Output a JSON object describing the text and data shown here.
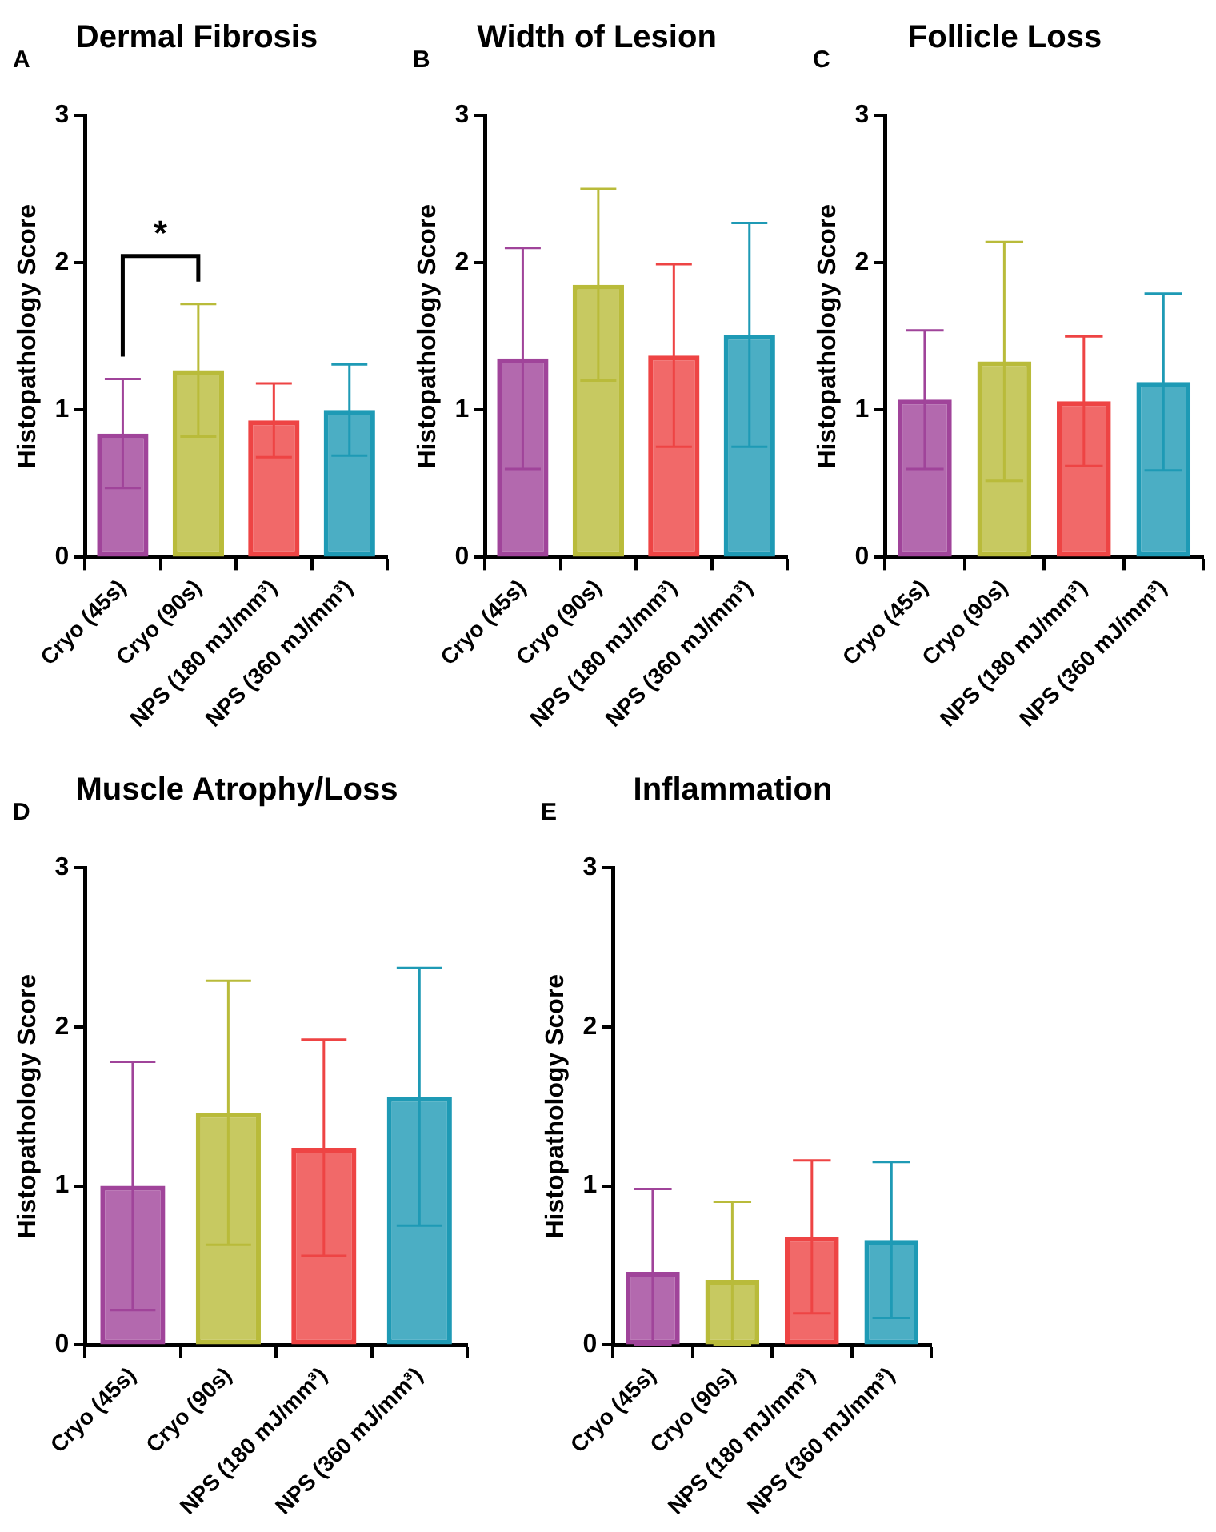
{
  "chart_data": [
    {
      "type": "bar",
      "title": "Dermal Fibrosis",
      "ylabel": "Histopathology Score",
      "categories": [
        "Cryo (45s)",
        "Cryo (90s)",
        "NPS (180 mJ/mm³)",
        "NPS (360 mJ/mm³)"
      ],
      "values": [
        0.84,
        1.27,
        0.93,
        1.0
      ],
      "errors": [
        0.37,
        0.45,
        0.25,
        0.31
      ],
      "colors": [
        "#a0449a",
        "#b9bb3a",
        "#ee4444",
        "#1e9ab5"
      ],
      "ylim": [
        0,
        3
      ],
      "yticks": [
        0,
        1,
        2,
        3
      ],
      "grid": false,
      "legend": false,
      "annotations": [
        "A",
        "*"
      ]
    },
    {
      "type": "bar",
      "title": "Width of Lesion",
      "ylabel": "Histopathology Score",
      "categories": [
        "Cryo (45s)",
        "Cryo (90s)",
        "NPS (180 mJ/mm³)",
        "NPS (360 mJ/mm³)"
      ],
      "values": [
        1.35,
        1.85,
        1.37,
        1.51
      ],
      "errors": [
        0.75,
        0.65,
        0.62,
        0.76
      ],
      "colors": [
        "#a0449a",
        "#b9bb3a",
        "#ee4444",
        "#1e9ab5"
      ],
      "ylim": [
        0,
        3
      ],
      "yticks": [
        0,
        1,
        2,
        3
      ],
      "grid": false,
      "legend": false,
      "annotations": [
        "B"
      ]
    },
    {
      "type": "bar",
      "title": "Follicle Loss",
      "ylabel": "Histopathology Score",
      "categories": [
        "Cryo (45s)",
        "Cryo (90s)",
        "NPS (180 mJ/mm³)",
        "NPS (360 mJ/mm³)"
      ],
      "values": [
        1.07,
        1.33,
        1.06,
        1.19
      ],
      "errors": [
        0.47,
        0.81,
        0.44,
        0.6
      ],
      "colors": [
        "#a0449a",
        "#b9bb3a",
        "#ee4444",
        "#1e9ab5"
      ],
      "ylim": [
        0,
        3
      ],
      "yticks": [
        0,
        1,
        2,
        3
      ],
      "grid": false,
      "legend": false,
      "annotations": [
        "C"
      ]
    },
    {
      "type": "bar",
      "title": "Muscle Atrophy/Loss",
      "ylabel": "Histopathology Score",
      "categories": [
        "Cryo (45s)",
        "Cryo (90s)",
        "NPS (180 mJ/mm³)",
        "NPS (360 mJ/mm³)"
      ],
      "values": [
        1.0,
        1.46,
        1.24,
        1.56
      ],
      "errors": [
        0.78,
        0.83,
        0.68,
        0.81
      ],
      "colors": [
        "#a0449a",
        "#b9bb3a",
        "#ee4444",
        "#1e9ab5"
      ],
      "ylim": [
        0,
        3
      ],
      "yticks": [
        0,
        1,
        2,
        3
      ],
      "grid": false,
      "legend": false,
      "annotations": [
        "D"
      ]
    },
    {
      "type": "bar",
      "title": "Inflammation",
      "ylabel": "Histopathology Score",
      "categories": [
        "Cryo (45s)",
        "Cryo (90s)",
        "NPS (180 mJ/mm³)",
        "NPS (360 mJ/mm³)"
      ],
      "values": [
        0.46,
        0.41,
        0.68,
        0.66
      ],
      "errors": [
        [
          0,
          0.98
        ],
        [
          0,
          0.9
        ],
        [
          0.2,
          1.16
        ],
        [
          0.17,
          1.15
        ]
      ],
      "colors": [
        "#a0449a",
        "#b9bb3a",
        "#ee4444",
        "#1e9ab5"
      ],
      "ylim": [
        0,
        3
      ],
      "yticks": [
        0,
        1,
        2,
        3
      ],
      "grid": false,
      "legend": false,
      "annotations": [
        "E"
      ]
    }
  ]
}
